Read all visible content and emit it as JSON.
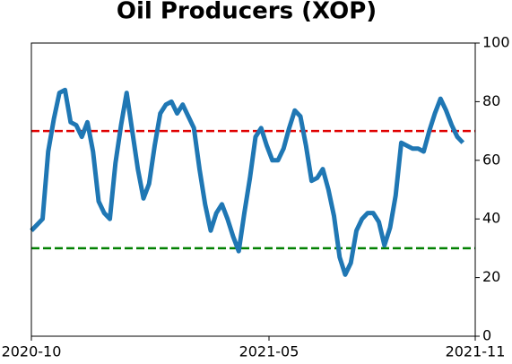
{
  "chart_data": {
    "type": "line",
    "title": "Oil Producers (XOP)",
    "x": [
      0,
      5,
      10,
      15,
      20,
      25,
      30,
      35,
      40,
      45,
      50,
      55,
      60,
      65,
      70,
      75,
      80,
      85,
      90,
      95,
      100,
      105,
      110,
      115,
      120,
      125,
      130,
      135,
      140,
      145,
      150,
      155,
      160,
      165,
      170,
      175,
      180,
      185,
      190,
      195,
      200,
      205,
      210,
      215,
      220,
      225,
      230,
      235,
      240,
      245,
      250,
      255,
      260,
      265,
      270,
      275,
      280,
      285,
      290,
      295,
      300,
      305,
      310,
      315,
      320,
      325,
      330,
      335,
      340,
      345,
      350,
      355,
      360,
      365,
      370,
      375,
      380,
      385
    ],
    "series": [
      {
        "color": "#1f77b4",
        "values": [
          36,
          38,
          40,
          63,
          74,
          83,
          84,
          73,
          72,
          68,
          73,
          63,
          46,
          42,
          40,
          59,
          72,
          83,
          70,
          57,
          47,
          52,
          65,
          76,
          79,
          80,
          76,
          79,
          75,
          71,
          57,
          45,
          36,
          42,
          45,
          40,
          34,
          29,
          42,
          54,
          68,
          71,
          65,
          60,
          60,
          64,
          71,
          77,
          75,
          65,
          53,
          54,
          57,
          50,
          41,
          27,
          21,
          25,
          36,
          40,
          42,
          42,
          39,
          31,
          37,
          48,
          66,
          65,
          64,
          64,
          63,
          70,
          76,
          81,
          77,
          72,
          68,
          66
        ]
      }
    ],
    "xlim": [
      0,
      396
    ],
    "xticks": [
      {
        "value": 0,
        "label": "2020-10"
      },
      {
        "value": 212,
        "label": "2021-05"
      },
      {
        "value": 396,
        "label": "2021-11"
      }
    ],
    "ylim": [
      0,
      100
    ],
    "yticks": [
      0,
      20,
      40,
      60,
      80,
      100
    ],
    "reference_lines": [
      {
        "value": 70,
        "color": "#e00000"
      },
      {
        "value": 30,
        "color": "#008000"
      }
    ]
  }
}
